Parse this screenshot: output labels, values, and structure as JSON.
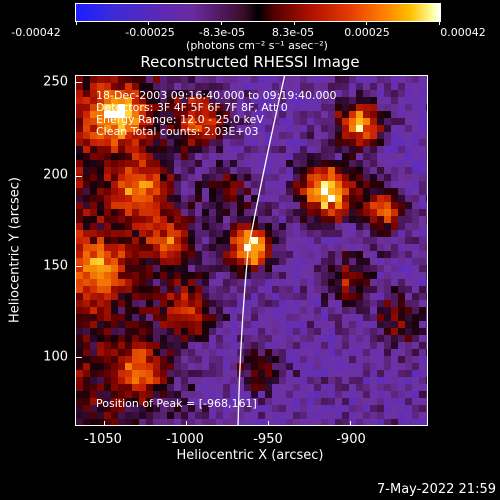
{
  "colorbar": {
    "tick_labels": [
      "-0.00042",
      "-0.00025",
      "-8.3e-05",
      "8.3e-05",
      "0.00025",
      "0.00042"
    ],
    "units": "(photons cm⁻² s⁻¹ asec⁻²)"
  },
  "title": "Reconstructed RHESSI Image",
  "info": {
    "time_range": "18-Dec-2003 09:16:40.000 to 09:19:40.000",
    "detectors": "Detectors: 3F 4F 5F 6F 7F 8F, Att 0",
    "energy": "Energy Range: 12.0 - 25.0 keV",
    "clean": "Clean    Total counts: 2.03E+03",
    "peak": "Position of Peak = [-968,161]"
  },
  "axes": {
    "xlabel": "Heliocentric X (arcsec)",
    "ylabel": "Heliocentric Y (arcsec)",
    "xticks": [
      "-1050",
      "-1000",
      "-950",
      "-900"
    ],
    "yticks": [
      "250",
      "200",
      "150",
      "100"
    ],
    "xtick_values": [
      -1050,
      -1000,
      -950,
      -900
    ],
    "ytick_values": [
      250,
      200,
      150,
      100
    ],
    "xlim": [
      -1062,
      -919
    ],
    "ylim": [
      62,
      255
    ]
  },
  "datestamp": "7-May-2022 21:59",
  "colors": {
    "low": "#5a28b8",
    "high": "#ffffff",
    "limb_line": "#ffffff"
  }
}
